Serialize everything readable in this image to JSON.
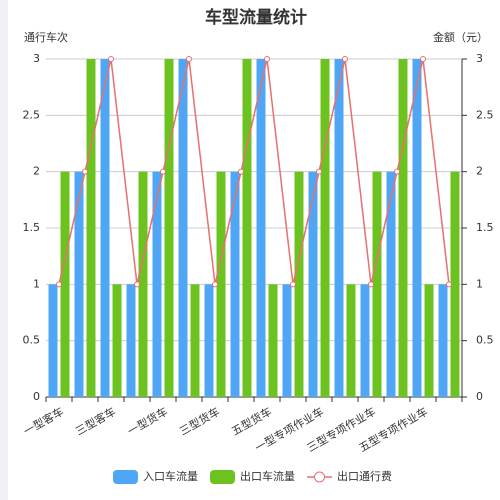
{
  "chart_data": {
    "type": "bar",
    "title": "车型流量统计",
    "ylabel": "通行车次",
    "y2label": "金额（元）",
    "categories": [
      "一型客车",
      null,
      "三型客车",
      null,
      "一型货车",
      null,
      "三型货车",
      null,
      "五型货车",
      null,
      "一型专项作业车",
      null,
      "三型专项作业车",
      null,
      "五型专项作业车",
      null
    ],
    "series": [
      {
        "name": "入口车流量",
        "type": "bar",
        "color": "#4fa6f5",
        "values": [
          1,
          2,
          3,
          1,
          2,
          3,
          1,
          2,
          3,
          1,
          2,
          3,
          1,
          2,
          3,
          1
        ]
      },
      {
        "name": "出口车流量",
        "type": "bar",
        "color": "#6cc31f",
        "values": [
          2,
          3,
          1,
          2,
          3,
          1,
          2,
          3,
          1,
          2,
          3,
          1,
          2,
          3,
          1,
          2
        ]
      },
      {
        "name": "出口通行费",
        "type": "line",
        "axis": "y2",
        "color": "#e8706f",
        "values": [
          1,
          2,
          3,
          1,
          2,
          3,
          1,
          2,
          3,
          1,
          2,
          3,
          1,
          2,
          3,
          1
        ]
      }
    ],
    "ylim": [
      0,
      3
    ],
    "yticks": [
      0,
      0.5,
      1,
      1.5,
      2,
      2.5,
      3
    ],
    "y2lim": [
      0,
      3
    ],
    "y2ticks": [
      0,
      0.5,
      1,
      1.5,
      2,
      2.5,
      3
    ],
    "grid": true,
    "legend": "bottom"
  }
}
